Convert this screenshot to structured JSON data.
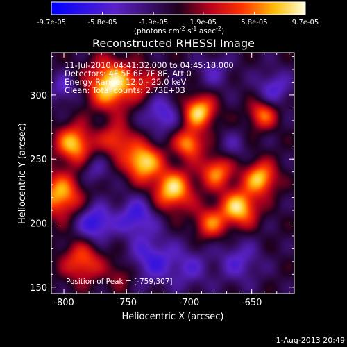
{
  "chart_data": {
    "type": "heatmap",
    "title": "Reconstructed RHESSI Image",
    "xlabel": "Heliocentric X (arcsec)",
    "ylabel": "Heliocentric Y (arcsec)",
    "xlim": [
      -810,
      -616
    ],
    "ylim": [
      145,
      333
    ],
    "xticks": [
      -800,
      -750,
      -700,
      -650
    ],
    "xtick_labels": [
      "-800",
      "-750",
      "-700",
      "-650"
    ],
    "yticks": [
      150,
      200,
      250,
      300
    ],
    "ytick_labels": [
      "150",
      "200",
      "250",
      "300"
    ],
    "colorbar": {
      "min": -9.7e-05,
      "max": 9.7e-05,
      "tick_values": [
        -9.7e-05,
        -5.8e-05,
        -1.9e-05,
        1.9e-05,
        5.8e-05,
        9.7e-05
      ],
      "tick_labels": [
        "-9.7e-05",
        "-5.8e-05",
        "-1.9e-05",
        "1.9e-05",
        "5.8e-05",
        "9.7e-05"
      ],
      "units_text": "(photons cm",
      "units_exp1": "-2",
      "units_mid": " s",
      "units_exp2": "-1",
      "units_mid2": " asec",
      "units_exp3": "-2",
      "units_close": ")"
    },
    "grid": false,
    "peak_position": [
      -759,
      307
    ],
    "sources": [
      {
        "x": -762,
        "y": 308,
        "amp": 1.0,
        "s": 13
      },
      {
        "x": -792,
        "y": 262,
        "amp": 0.85,
        "s": 10
      },
      {
        "x": -803,
        "y": 222,
        "amp": 0.8,
        "s": 12
      },
      {
        "x": -785,
        "y": 170,
        "amp": 0.6,
        "s": 11
      },
      {
        "x": -758,
        "y": 265,
        "amp": 0.55,
        "s": 9
      },
      {
        "x": -737,
        "y": 248,
        "amp": 0.95,
        "s": 10
      },
      {
        "x": -713,
        "y": 226,
        "amp": 0.9,
        "s": 11
      },
      {
        "x": -700,
        "y": 262,
        "amp": 0.75,
        "s": 8
      },
      {
        "x": -692,
        "y": 287,
        "amp": 0.9,
        "s": 9
      },
      {
        "x": -678,
        "y": 240,
        "amp": 0.7,
        "s": 9
      },
      {
        "x": -660,
        "y": 212,
        "amp": 0.9,
        "s": 10
      },
      {
        "x": -643,
        "y": 235,
        "amp": 0.85,
        "s": 9
      },
      {
        "x": -641,
        "y": 285,
        "amp": 0.65,
        "s": 8
      },
      {
        "x": -683,
        "y": 200,
        "amp": 0.6,
        "s": 9
      },
      {
        "x": -735,
        "y": 310,
        "amp": 0.35,
        "s": 8
      },
      {
        "x": -754,
        "y": 160,
        "amp": 0.3,
        "s": 8
      },
      {
        "x": -775,
        "y": 200,
        "amp": -0.65,
        "s": 10
      },
      {
        "x": -742,
        "y": 205,
        "amp": -0.55,
        "s": 11
      },
      {
        "x": -730,
        "y": 172,
        "amp": -0.5,
        "s": 13
      },
      {
        "x": -700,
        "y": 165,
        "amp": -0.35,
        "s": 12
      },
      {
        "x": -722,
        "y": 285,
        "amp": -0.5,
        "s": 10
      },
      {
        "x": -775,
        "y": 240,
        "amp": -0.3,
        "s": 8
      },
      {
        "x": -800,
        "y": 305,
        "amp": -0.4,
        "s": 8
      },
      {
        "x": -660,
        "y": 170,
        "amp": -0.4,
        "s": 12
      },
      {
        "x": -632,
        "y": 305,
        "amp": -0.45,
        "s": 10
      },
      {
        "x": -680,
        "y": 318,
        "amp": -0.3,
        "s": 10
      },
      {
        "x": -665,
        "y": 260,
        "amp": -0.25,
        "s": 8
      }
    ]
  },
  "header": {
    "time_range": "11-Jul-2010 04:41:32.000 to 04:45:18.000",
    "detectors": "Detectors: 4F 5F 6F 7F 8F, Att 0",
    "energy": "Energy Range: 12.0 - 25.0 keV",
    "algorithm": "Clean: Total counts: 2.73E+03"
  },
  "peak_label": "Position of Peak = [-759,307]",
  "timestamp": "1-Aug-2013 20:49"
}
